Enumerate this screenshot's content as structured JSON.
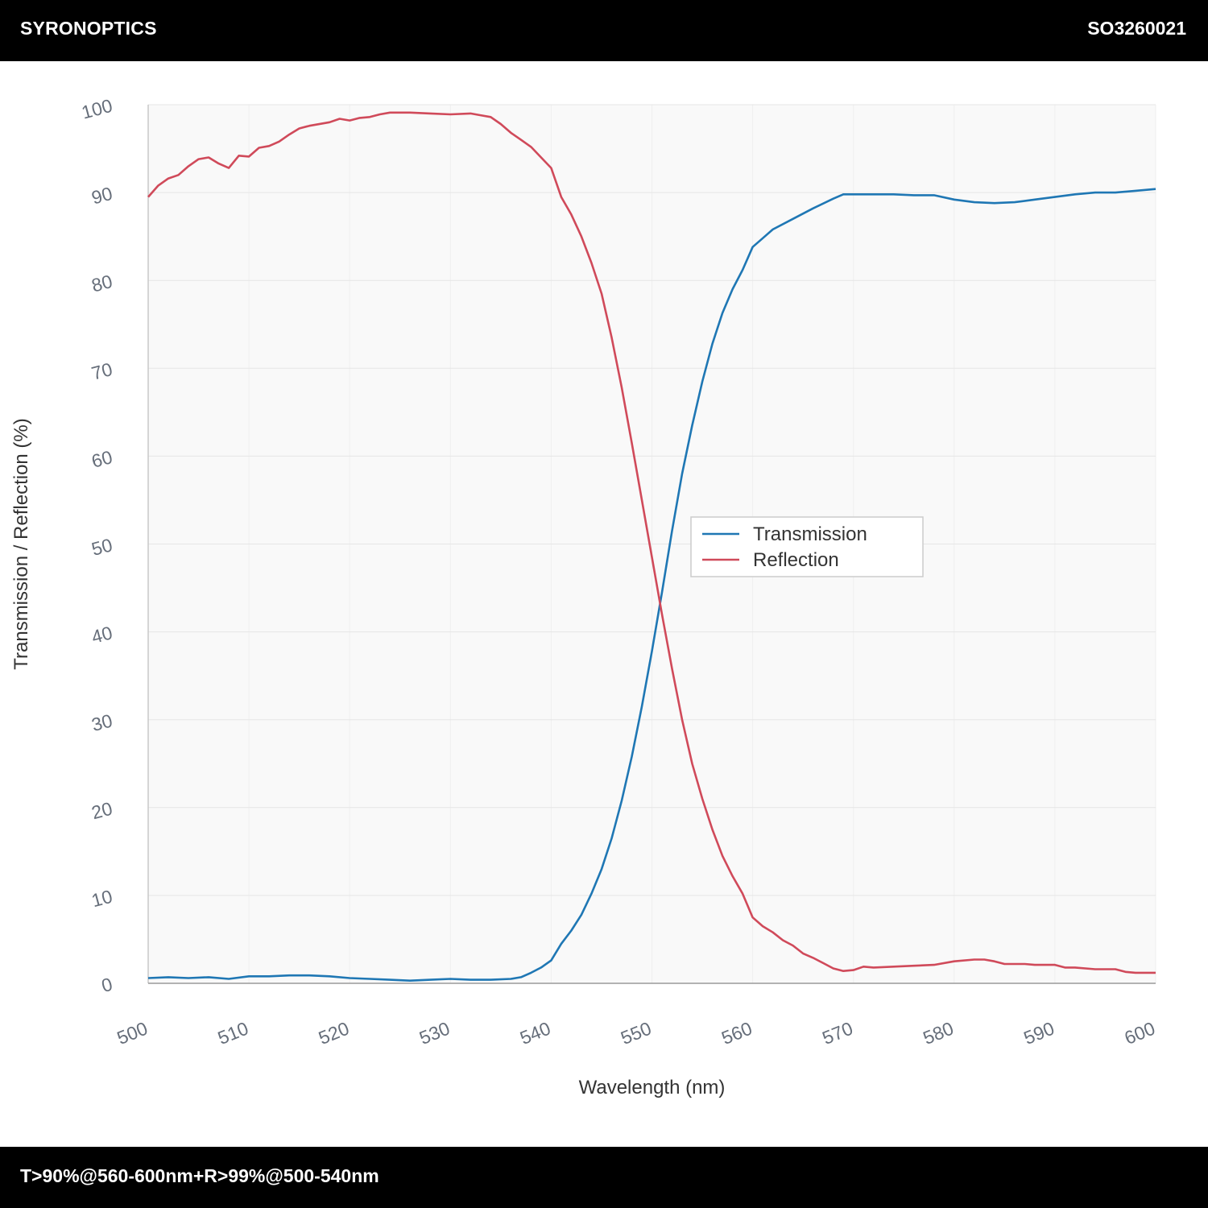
{
  "header": {
    "brand": "SYRONOPTICS",
    "part_number": "SO3260021"
  },
  "footer": {
    "spec": "T>90%@560-600nm+R>99%@500-540nm"
  },
  "colors": {
    "transmission": "#1f77b4",
    "reflection": "#d04a5a",
    "plot_bg": "#f9f9f9",
    "grid": "#e6e6e6",
    "bars": "#000000"
  },
  "chart_data": {
    "type": "line",
    "xlabel": "Wavelength (nm)",
    "ylabel": "Transmission / Reflection (%)",
    "xlim": [
      500,
      600
    ],
    "ylim": [
      0,
      100
    ],
    "xticks": [
      500,
      510,
      520,
      530,
      540,
      550,
      560,
      570,
      580,
      590,
      600
    ],
    "yticks": [
      0,
      10,
      20,
      30,
      40,
      50,
      60,
      70,
      80,
      90,
      100
    ],
    "grid": true,
    "legend_position": "center-right",
    "series": [
      {
        "name": "Transmission",
        "color": "#1f77b4",
        "points": [
          [
            500,
            0.6
          ],
          [
            502,
            0.7
          ],
          [
            504,
            0.6
          ],
          [
            506,
            0.7
          ],
          [
            508,
            0.5
          ],
          [
            510,
            0.8
          ],
          [
            512,
            0.8
          ],
          [
            514,
            0.9
          ],
          [
            516,
            0.9
          ],
          [
            518,
            0.8
          ],
          [
            520,
            0.6
          ],
          [
            522,
            0.5
          ],
          [
            524,
            0.4
          ],
          [
            526,
            0.3
          ],
          [
            528,
            0.4
          ],
          [
            530,
            0.5
          ],
          [
            532,
            0.4
          ],
          [
            534,
            0.4
          ],
          [
            536,
            0.5
          ],
          [
            537,
            0.7
          ],
          [
            538,
            1.2
          ],
          [
            539,
            1.8
          ],
          [
            540,
            2.6
          ],
          [
            541,
            4.5
          ],
          [
            542,
            6.0
          ],
          [
            543,
            7.8
          ],
          [
            544,
            10.2
          ],
          [
            545,
            13.0
          ],
          [
            546,
            16.5
          ],
          [
            547,
            20.8
          ],
          [
            548,
            25.8
          ],
          [
            549,
            31.5
          ],
          [
            550,
            37.8
          ],
          [
            551,
            44.5
          ],
          [
            552,
            51.5
          ],
          [
            553,
            58.0
          ],
          [
            554,
            63.5
          ],
          [
            555,
            68.5
          ],
          [
            556,
            72.8
          ],
          [
            557,
            76.3
          ],
          [
            558,
            79.0
          ],
          [
            559,
            81.2
          ],
          [
            560,
            83.8
          ],
          [
            561,
            84.8
          ],
          [
            562,
            85.8
          ],
          [
            564,
            87.0
          ],
          [
            566,
            88.2
          ],
          [
            568,
            89.3
          ],
          [
            569,
            89.8
          ],
          [
            570,
            89.8
          ],
          [
            572,
            89.8
          ],
          [
            574,
            89.8
          ],
          [
            576,
            89.7
          ],
          [
            578,
            89.7
          ],
          [
            580,
            89.2
          ],
          [
            582,
            88.9
          ],
          [
            584,
            88.8
          ],
          [
            586,
            88.9
          ],
          [
            588,
            89.2
          ],
          [
            590,
            89.5
          ],
          [
            592,
            89.8
          ],
          [
            594,
            90.0
          ],
          [
            596,
            90.0
          ],
          [
            598,
            90.2
          ],
          [
            600,
            90.4
          ]
        ]
      },
      {
        "name": "Reflection",
        "color": "#d04a5a",
        "points": [
          [
            500,
            89.5
          ],
          [
            501,
            90.8
          ],
          [
            502,
            91.6
          ],
          [
            503,
            92.0
          ],
          [
            504,
            93.0
          ],
          [
            505,
            93.8
          ],
          [
            506,
            94.0
          ],
          [
            507,
            93.3
          ],
          [
            508,
            92.8
          ],
          [
            509,
            94.2
          ],
          [
            510,
            94.1
          ],
          [
            511,
            95.1
          ],
          [
            512,
            95.3
          ],
          [
            513,
            95.8
          ],
          [
            514,
            96.6
          ],
          [
            515,
            97.3
          ],
          [
            516,
            97.6
          ],
          [
            518,
            98.0
          ],
          [
            519,
            98.4
          ],
          [
            520,
            98.2
          ],
          [
            521,
            98.5
          ],
          [
            522,
            98.6
          ],
          [
            523,
            98.9
          ],
          [
            524,
            99.1
          ],
          [
            526,
            99.1
          ],
          [
            528,
            99.0
          ],
          [
            530,
            98.9
          ],
          [
            532,
            99.0
          ],
          [
            533,
            98.8
          ],
          [
            534,
            98.6
          ],
          [
            535,
            97.8
          ],
          [
            536,
            96.8
          ],
          [
            537,
            96.0
          ],
          [
            538,
            95.2
          ],
          [
            539,
            94.0
          ],
          [
            540,
            92.8
          ],
          [
            541,
            89.5
          ],
          [
            542,
            87.5
          ],
          [
            543,
            85.0
          ],
          [
            544,
            82.0
          ],
          [
            545,
            78.5
          ],
          [
            546,
            73.5
          ],
          [
            547,
            67.8
          ],
          [
            548,
            61.5
          ],
          [
            549,
            55.0
          ],
          [
            550,
            48.5
          ],
          [
            551,
            42.0
          ],
          [
            552,
            35.8
          ],
          [
            553,
            30.0
          ],
          [
            554,
            25.0
          ],
          [
            555,
            21.0
          ],
          [
            556,
            17.5
          ],
          [
            557,
            14.5
          ],
          [
            558,
            12.2
          ],
          [
            559,
            10.2
          ],
          [
            560,
            7.5
          ],
          [
            561,
            6.5
          ],
          [
            562,
            5.8
          ],
          [
            563,
            4.9
          ],
          [
            564,
            4.3
          ],
          [
            565,
            3.4
          ],
          [
            566,
            2.9
          ],
          [
            567,
            2.3
          ],
          [
            568,
            1.7
          ],
          [
            569,
            1.4
          ],
          [
            570,
            1.5
          ],
          [
            571,
            1.9
          ],
          [
            572,
            1.8
          ],
          [
            574,
            1.9
          ],
          [
            576,
            2.0
          ],
          [
            578,
            2.1
          ],
          [
            580,
            2.5
          ],
          [
            582,
            2.7
          ],
          [
            583,
            2.7
          ],
          [
            584,
            2.5
          ],
          [
            585,
            2.2
          ],
          [
            587,
            2.2
          ],
          [
            588,
            2.1
          ],
          [
            590,
            2.1
          ],
          [
            591,
            1.8
          ],
          [
            592,
            1.8
          ],
          [
            594,
            1.6
          ],
          [
            596,
            1.6
          ],
          [
            597,
            1.3
          ],
          [
            598,
            1.2
          ],
          [
            600,
            1.2
          ]
        ]
      }
    ]
  }
}
